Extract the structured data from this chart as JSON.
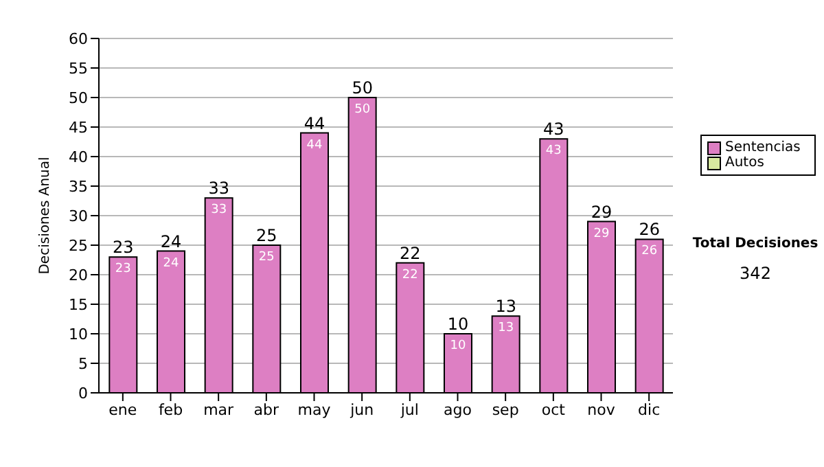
{
  "chart_data": {
    "type": "bar",
    "ylabel": "Decisiones Anual",
    "categories": [
      "ene",
      "feb",
      "mar",
      "abr",
      "may",
      "jun",
      "jul",
      "ago",
      "sep",
      "oct",
      "nov",
      "dic"
    ],
    "series": [
      {
        "name": "Sentencias",
        "color": "#dd7fc3",
        "values": [
          23,
          24,
          33,
          25,
          44,
          50,
          22,
          10,
          13,
          43,
          29,
          26
        ],
        "value_labels": [
          "23",
          "24",
          "33",
          "25",
          "44",
          "50",
          "22",
          "10",
          "13",
          "43",
          "29",
          "26"
        ]
      },
      {
        "name": "Autos",
        "color": "#d8eaa0",
        "values": [
          0,
          0,
          0,
          0,
          0,
          0,
          0,
          0,
          0,
          0,
          0,
          0
        ]
      }
    ],
    "stacked": true,
    "totals": [
      "23",
      "24",
      "33",
      "25",
      "44",
      "50",
      "22",
      "10",
      "13",
      "43",
      "29",
      "26"
    ],
    "ylim": [
      0,
      60
    ],
    "yticks": [
      0,
      5,
      10,
      15,
      20,
      25,
      30,
      35,
      40,
      45,
      50,
      55,
      60
    ],
    "grid": "y",
    "legend": "right",
    "annotations": [
      "Total Decisiones",
      "342"
    ]
  }
}
